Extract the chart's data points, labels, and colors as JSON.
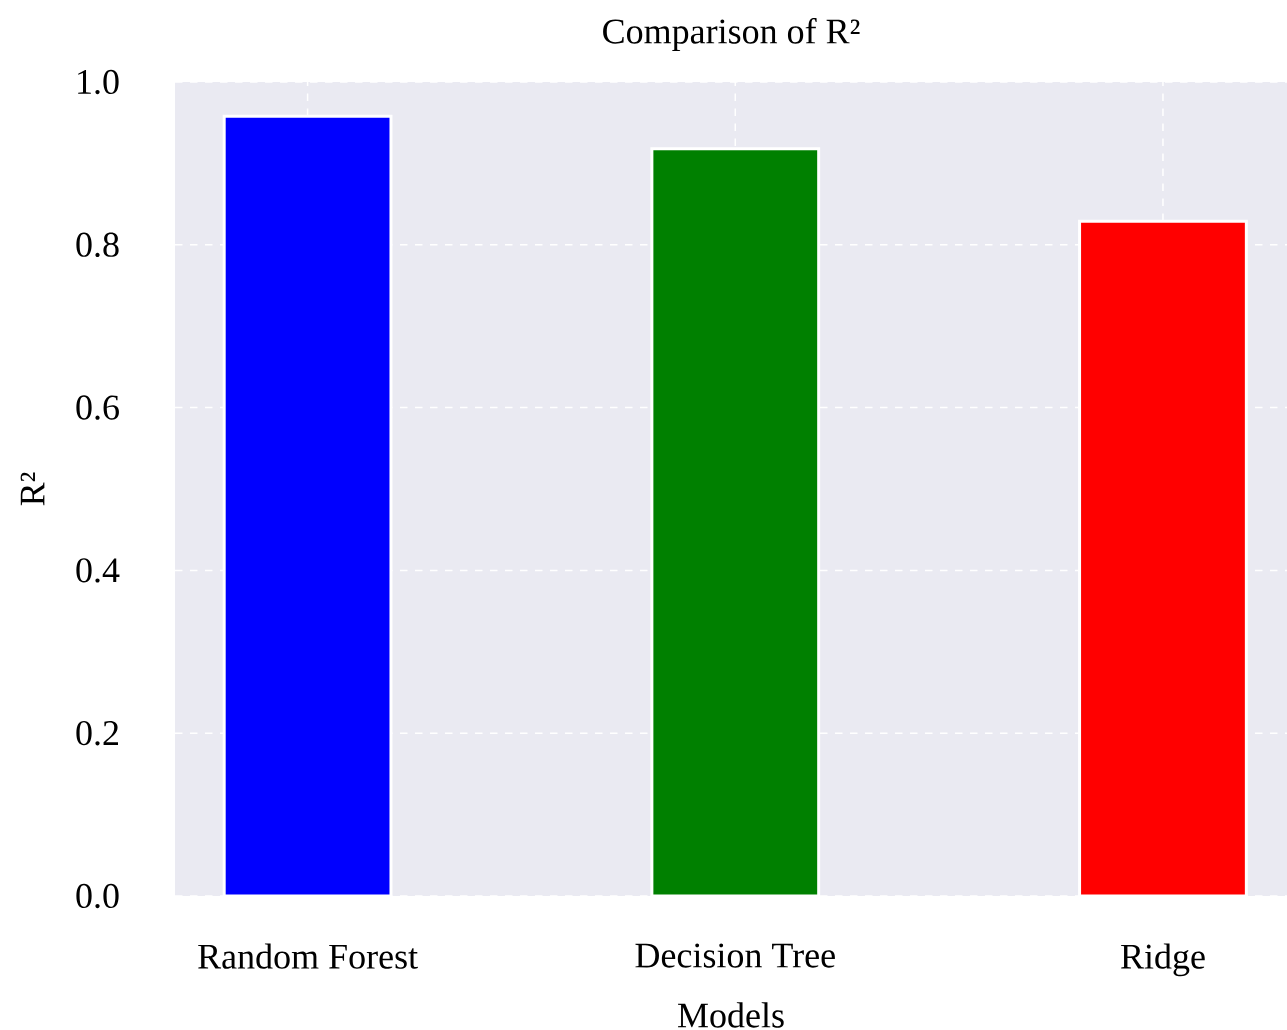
{
  "chart_data": {
    "type": "bar",
    "title": "Comparison of R²",
    "xlabel": "Models",
    "ylabel": "R²",
    "categories": [
      "Random Forest",
      "Decision Tree",
      "Ridge"
    ],
    "values": [
      0.958,
      0.918,
      0.829
    ],
    "colors": [
      "#0000ff",
      "#008000",
      "#ff0000"
    ],
    "ylim": [
      0,
      1
    ],
    "yticks": [
      {
        "value": 0,
        "label": "0.0"
      },
      {
        "value": 0.2,
        "label": "0.2"
      },
      {
        "value": 0.4,
        "label": "0.4"
      },
      {
        "value": 0.6,
        "label": "0.6"
      },
      {
        "value": 0.8,
        "label": "0.8"
      },
      {
        "value": 1,
        "label": "1.0"
      }
    ],
    "grid": true
  }
}
